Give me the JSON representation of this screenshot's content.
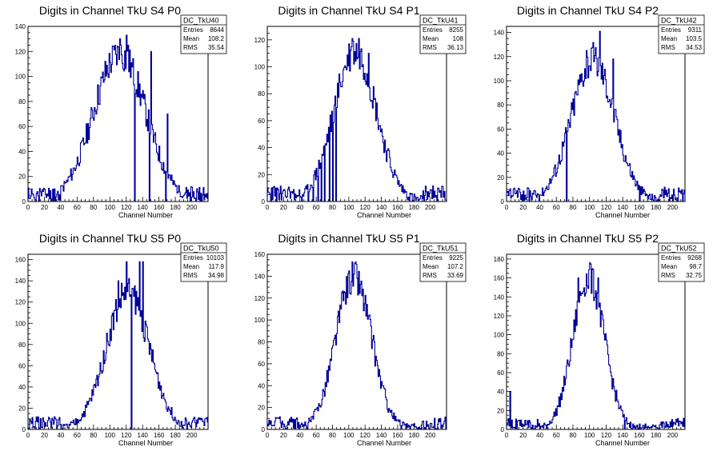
{
  "chart_data": [
    {
      "type": "histogram",
      "title": "Digits in Channel TkU S4 P0",
      "xlabel": "Channel Number",
      "xlim": [
        0,
        220
      ],
      "ylim": [
        0,
        140
      ],
      "xticks": [
        0,
        20,
        40,
        60,
        80,
        100,
        120,
        140,
        160,
        180,
        200
      ],
      "yticks": [
        0,
        20,
        40,
        60,
        80,
        100,
        120,
        140
      ],
      "stats": {
        "name": "DC_TkU40",
        "Entries": "8644",
        "Mean": "108.2",
        "RMS": "35.54"
      },
      "center": 112,
      "sigma": 32,
      "peak": 118,
      "seed": 11,
      "spikes": [
        [
          112,
          130
        ],
        [
          120,
          133
        ],
        [
          122,
          125
        ],
        [
          150,
          120
        ],
        [
          170,
          70
        ]
      ],
      "dips": [
        [
          130,
          0
        ],
        [
          148,
          0
        ],
        [
          168,
          0
        ]
      ]
    },
    {
      "type": "histogram",
      "title": "Digits in Channel TkU S4 P1",
      "xlabel": "Channel Number",
      "xlim": [
        0,
        220
      ],
      "ylim": [
        0,
        130
      ],
      "xticks": [
        0,
        20,
        40,
        60,
        80,
        100,
        120,
        140,
        160,
        180,
        200
      ],
      "yticks": [
        0,
        20,
        40,
        60,
        80,
        100,
        120
      ],
      "stats": {
        "name": "DC_TkU41",
        "Entries": "8255",
        "Mean": "108",
        "RMS": "36.13"
      },
      "center": 108,
      "sigma": 26,
      "peak": 112,
      "seed": 23,
      "spikes": [
        [
          104,
          121
        ],
        [
          112,
          121
        ],
        [
          124,
          110
        ]
      ],
      "dips": [
        [
          42,
          0
        ],
        [
          50,
          0
        ],
        [
          56,
          0
        ],
        [
          62,
          0
        ],
        [
          66,
          0
        ],
        [
          70,
          0
        ],
        [
          76,
          0
        ],
        [
          80,
          0
        ],
        [
          84,
          0
        ]
      ]
    },
    {
      "type": "histogram",
      "title": "Digits in Channel TkU S4 P2",
      "xlabel": "Channel Number",
      "xlim": [
        0,
        215
      ],
      "ylim": [
        0,
        145
      ],
      "xticks": [
        0,
        20,
        40,
        60,
        80,
        100,
        120,
        140,
        160,
        180,
        200
      ],
      "yticks": [
        0,
        20,
        40,
        60,
        80,
        100,
        120,
        140
      ],
      "stats": {
        "name": "DC_TkU42",
        "Entries": "9311",
        "Mean": "103.5",
        "RMS": "34.53"
      },
      "center": 104,
      "sigma": 26,
      "peak": 118,
      "seed": 37,
      "spikes": [
        [
          112,
          141
        ],
        [
          96,
          125
        ],
        [
          128,
          118
        ]
      ],
      "dips": [
        [
          72,
          0
        ],
        [
          160,
          0
        ]
      ]
    },
    {
      "type": "histogram",
      "title": "Digits in Channel TkU S5 P0",
      "xlabel": "Channel Number",
      "xlim": [
        0,
        220
      ],
      "ylim": [
        0,
        165
      ],
      "xticks": [
        0,
        20,
        40,
        60,
        80,
        100,
        120,
        140,
        160,
        180,
        200
      ],
      "yticks": [
        0,
        20,
        40,
        60,
        80,
        100,
        120,
        140,
        160
      ],
      "stats": {
        "name": "DC_TkU50",
        "Entries": "10103",
        "Mean": "117.9",
        "RMS": "34.98"
      },
      "center": 122,
      "sigma": 26,
      "peak": 130,
      "seed": 51,
      "spikes": [
        [
          120,
          158
        ],
        [
          136,
          158
        ],
        [
          140,
          158
        ],
        [
          110,
          140
        ]
      ],
      "dips": [
        [
          126,
          0
        ]
      ]
    },
    {
      "type": "histogram",
      "title": "Digits in Channel TkU S5 P1",
      "xlabel": "Channel Number",
      "xlim": [
        0,
        220
      ],
      "ylim": [
        0,
        160
      ],
      "xticks": [
        0,
        20,
        40,
        60,
        80,
        100,
        120,
        140,
        160,
        180,
        200
      ],
      "yticks": [
        0,
        20,
        40,
        60,
        80,
        100,
        120,
        140,
        160
      ],
      "stats": {
        "name": "DC_TkU51",
        "Entries": "9225",
        "Mean": "107.2",
        "RMS": "33.69"
      },
      "center": 106,
      "sigma": 22,
      "peak": 140,
      "seed": 63,
      "spikes": [
        [
          104,
          153
        ],
        [
          108,
          153
        ],
        [
          100,
          145
        ]
      ],
      "dips": []
    },
    {
      "type": "histogram",
      "title": "Digits in Channel TkU S5 P2",
      "xlabel": "Channel Number",
      "xlim": [
        0,
        215
      ],
      "ylim": [
        0,
        185
      ],
      "xticks": [
        0,
        20,
        40,
        60,
        80,
        100,
        120,
        140,
        160,
        180,
        200
      ],
      "yticks": [
        0,
        20,
        40,
        60,
        80,
        100,
        120,
        140,
        160,
        180
      ],
      "stats": {
        "name": "DC_TkU52",
        "Entries": "9268",
        "Mean": "98.7",
        "RMS": "32.75"
      },
      "center": 99,
      "sigma": 19,
      "peak": 160,
      "seed": 79,
      "spikes": [
        [
          100,
          176
        ],
        [
          86,
          160
        ],
        [
          110,
          160
        ],
        [
          4,
          40
        ]
      ],
      "dips": [
        [
          142,
          0
        ]
      ]
    }
  ]
}
